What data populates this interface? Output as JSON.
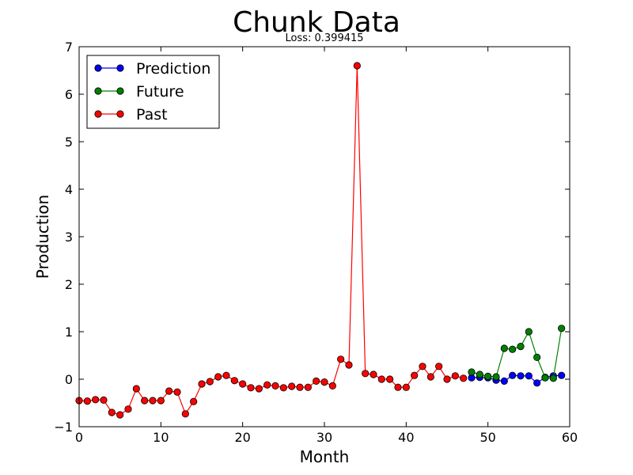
{
  "chart_data": {
    "type": "line",
    "title": "Chunk Data",
    "subtitle": "Loss: 0.399415",
    "xlabel": "Month",
    "ylabel": "Production",
    "xlim": [
      0,
      60
    ],
    "ylim": [
      -1,
      7
    ],
    "x_ticks": [
      0,
      10,
      20,
      30,
      40,
      50,
      60
    ],
    "y_ticks": [
      -1,
      0,
      1,
      2,
      3,
      4,
      5,
      6,
      7
    ],
    "x_tick_labels": [
      "0",
      "10",
      "20",
      "30",
      "40",
      "50",
      "60"
    ],
    "y_tick_labels": [
      "−1",
      "0",
      "1",
      "2",
      "3",
      "4",
      "5",
      "6",
      "7"
    ],
    "grid": false,
    "legend_position": "upper-left",
    "series": [
      {
        "name": "Prediction",
        "color": "#0000ff",
        "x": [
          48,
          49,
          50,
          51,
          52,
          53,
          54,
          55,
          56,
          57,
          58,
          59
        ],
        "y": [
          0.03,
          0.04,
          0.03,
          -0.02,
          -0.04,
          0.08,
          0.07,
          0.07,
          -0.08,
          0.04,
          0.07,
          0.08
        ]
      },
      {
        "name": "Future",
        "color": "#008000",
        "x": [
          48,
          49,
          50,
          51,
          52,
          53,
          54,
          55,
          56,
          57,
          58,
          59
        ],
        "y": [
          0.15,
          0.1,
          0.06,
          0.05,
          0.65,
          0.63,
          0.69,
          1.0,
          0.46,
          0.03,
          0.02,
          1.07
        ]
      },
      {
        "name": "Past",
        "color": "#ff0000",
        "x": [
          0,
          1,
          2,
          3,
          4,
          5,
          6,
          7,
          8,
          9,
          10,
          11,
          12,
          13,
          14,
          15,
          16,
          17,
          18,
          19,
          20,
          21,
          22,
          23,
          24,
          25,
          26,
          27,
          28,
          29,
          30,
          31,
          32,
          33,
          34,
          35,
          36,
          37,
          38,
          39,
          40,
          41,
          42,
          43,
          44,
          45,
          46,
          47
        ],
        "y": [
          -0.45,
          -0.46,
          -0.43,
          -0.44,
          -0.7,
          -0.75,
          -0.63,
          -0.2,
          -0.45,
          -0.45,
          -0.45,
          -0.25,
          -0.27,
          -0.73,
          -0.47,
          -0.1,
          -0.05,
          0.05,
          0.08,
          -0.03,
          -0.1,
          -0.18,
          -0.2,
          -0.12,
          -0.14,
          -0.18,
          -0.15,
          -0.17,
          -0.17,
          -0.04,
          -0.06,
          -0.14,
          0.42,
          0.3,
          6.6,
          0.12,
          0.1,
          0.0,
          0.0,
          -0.17,
          -0.17,
          0.08,
          0.27,
          0.05,
          0.27,
          0.0,
          0.07,
          0.02
        ]
      }
    ]
  }
}
